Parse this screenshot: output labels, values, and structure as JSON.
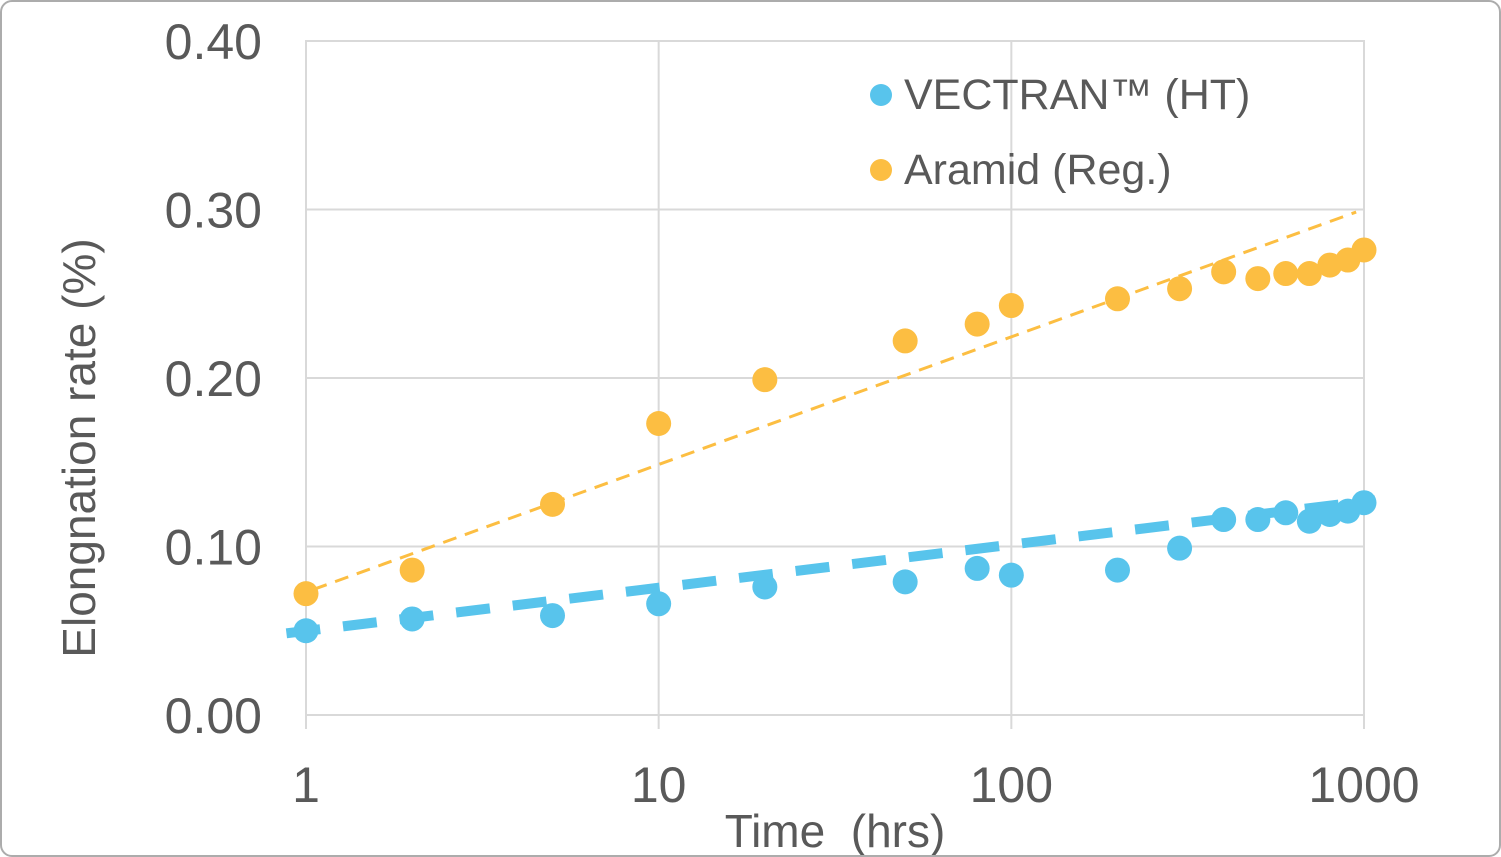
{
  "figure": {
    "background": "#FFFFFF",
    "border_color": "#ACACAC"
  },
  "colors": {
    "grid": "#D9D9D9",
    "text": "#595959"
  },
  "chart_data": {
    "type": "scatter",
    "title": "",
    "xlabel": "Time  (hrs)",
    "ylabel": "Elongnation rate (%)",
    "x_scale": "log",
    "xlim": [
      1,
      1000
    ],
    "ylim": [
      0.0,
      0.4
    ],
    "x_ticks": [
      1,
      10,
      100,
      1000
    ],
    "x_tick_labels": [
      "1",
      "10",
      "100",
      "1000"
    ],
    "y_ticks": [
      0.0,
      0.1,
      0.2,
      0.3,
      0.4
    ],
    "y_tick_labels": [
      "0.00",
      "0.10",
      "0.20",
      "0.30",
      "0.40"
    ],
    "grid": true,
    "legend_position": "top-right-inside",
    "series": [
      {
        "name": "VECTRAN™ (HT)",
        "color": "#58C4EC",
        "marker": "circle",
        "x": [
          1,
          2,
          5,
          10,
          20,
          50,
          80,
          100,
          200,
          300,
          400,
          500,
          600,
          700,
          800,
          900,
          1000
        ],
        "y": [
          0.05,
          0.057,
          0.059,
          0.066,
          0.076,
          0.079,
          0.087,
          0.083,
          0.086,
          0.099,
          0.116,
          0.116,
          0.12,
          0.115,
          0.119,
          0.121,
          0.126
        ],
        "trendline": {
          "style": "dashed",
          "weight": "thick",
          "from": [
            0.88,
            0.0485
          ],
          "to": [
            1075,
            0.1275
          ]
        }
      },
      {
        "name": "Aramid (Reg.)",
        "color": "#FCBE42",
        "marker": "circle",
        "x": [
          1,
          2,
          5,
          10,
          20,
          50,
          80,
          100,
          200,
          300,
          400,
          500,
          600,
          700,
          800,
          900,
          1000
        ],
        "y": [
          0.072,
          0.086,
          0.125,
          0.173,
          0.199,
          0.222,
          0.232,
          0.243,
          0.247,
          0.253,
          0.263,
          0.259,
          0.262,
          0.262,
          0.267,
          0.27,
          0.276
        ],
        "trendline": {
          "style": "dashed",
          "weight": "thin",
          "from": [
            1.05,
            0.0745
          ],
          "to": [
            950,
            0.2985
          ]
        }
      }
    ]
  }
}
